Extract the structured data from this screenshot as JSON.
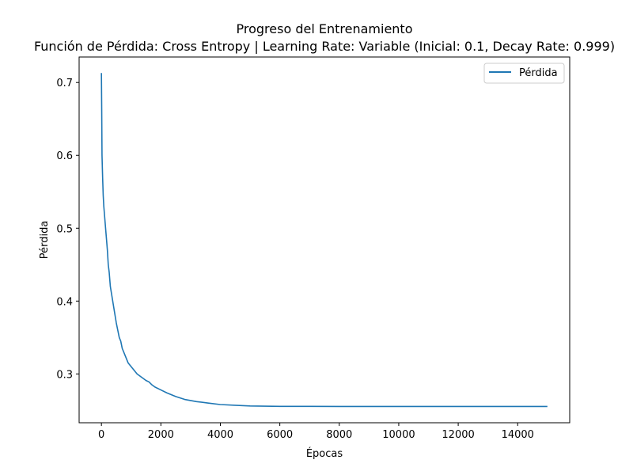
{
  "chart_data": {
    "type": "line",
    "title": "Progreso del Entrenamiento",
    "subtitle": "Función de Pérdida: Cross Entropy | Learning Rate: Variable (Inicial: 0.1, Decay Rate: 0.999)",
    "xlabel": "Épocas",
    "ylabel": "Pérdida",
    "xlim": [
      -750,
      15750
    ],
    "ylim": [
      0.233,
      0.735
    ],
    "xticks": [
      0,
      2000,
      4000,
      6000,
      8000,
      10000,
      12000,
      14000
    ],
    "xtick_labels": [
      "0",
      "2000",
      "4000",
      "6000",
      "8000",
      "10000",
      "12000",
      "14000"
    ],
    "yticks": [
      0.3,
      0.4,
      0.5,
      0.6,
      0.7
    ],
    "ytick_labels": [
      "0.3",
      "0.4",
      "0.5",
      "0.6",
      "0.7"
    ],
    "grid": false,
    "legend_position": "upper-right",
    "series": [
      {
        "name": "Pérdida",
        "color": "#1f77b4",
        "x": [
          0,
          10,
          20,
          40,
          60,
          80,
          100,
          120,
          140,
          160,
          180,
          200,
          230,
          260,
          300,
          340,
          380,
          420,
          460,
          500,
          550,
          600,
          650,
          700,
          750,
          800,
          900,
          1000,
          1100,
          1200,
          1300,
          1400,
          1500,
          1600,
          1700,
          1800,
          2000,
          2200,
          2500,
          2800,
          3200,
          3600,
          4000,
          4500,
          5000,
          6000,
          7000,
          8000,
          10000,
          12000,
          14000,
          15000
        ],
        "y": [
          0.713,
          0.66,
          0.6,
          0.57,
          0.545,
          0.53,
          0.52,
          0.51,
          0.5,
          0.49,
          0.48,
          0.47,
          0.45,
          0.44,
          0.42,
          0.41,
          0.4,
          0.39,
          0.38,
          0.37,
          0.36,
          0.35,
          0.345,
          0.335,
          0.33,
          0.325,
          0.315,
          0.31,
          0.305,
          0.3,
          0.297,
          0.294,
          0.291,
          0.289,
          0.285,
          0.282,
          0.278,
          0.274,
          0.269,
          0.265,
          0.262,
          0.26,
          0.258,
          0.257,
          0.256,
          0.2555,
          0.2555,
          0.2553,
          0.2553,
          0.2553,
          0.2553,
          0.2553
        ]
      }
    ]
  }
}
